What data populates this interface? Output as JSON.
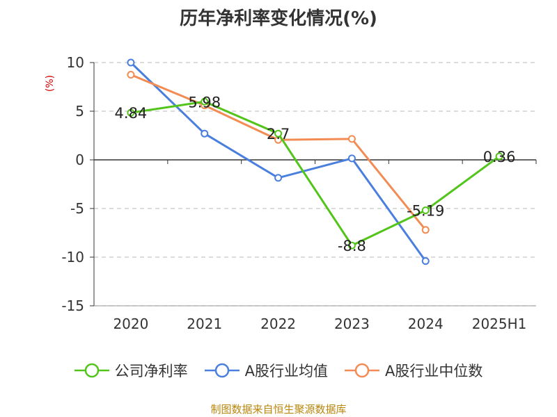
{
  "chart_data": {
    "type": "line",
    "title": "历年净利率变化情况(%)",
    "ylabel": "(%)",
    "categories": [
      "2020",
      "2021",
      "2022",
      "2023",
      "2024",
      "2025H1"
    ],
    "ylim": [
      -15,
      10
    ],
    "yticks": [
      10,
      5,
      0,
      -5,
      -10,
      -15
    ],
    "grid": true,
    "legend_position": "bottom",
    "series": [
      {
        "name": "公司净利率",
        "color": "#52c41a",
        "values": [
          4.84,
          5.98,
          2.7,
          -8.8,
          -5.19,
          0.36
        ],
        "labels": [
          "4.84",
          "5.98",
          "2.7",
          "-8.8",
          "-5.19",
          "0.36"
        ]
      },
      {
        "name": "A股行业均值",
        "color": "#4a7fde",
        "values": [
          10.0,
          2.7,
          -1.85,
          0.15,
          -10.4,
          null
        ],
        "labels": []
      },
      {
        "name": "A股行业中位数",
        "color": "#f28c54",
        "values": [
          8.75,
          5.6,
          2.05,
          2.15,
          -7.2,
          null
        ],
        "labels": []
      }
    ]
  },
  "source": "制图数据来自恒生聚源数据库"
}
